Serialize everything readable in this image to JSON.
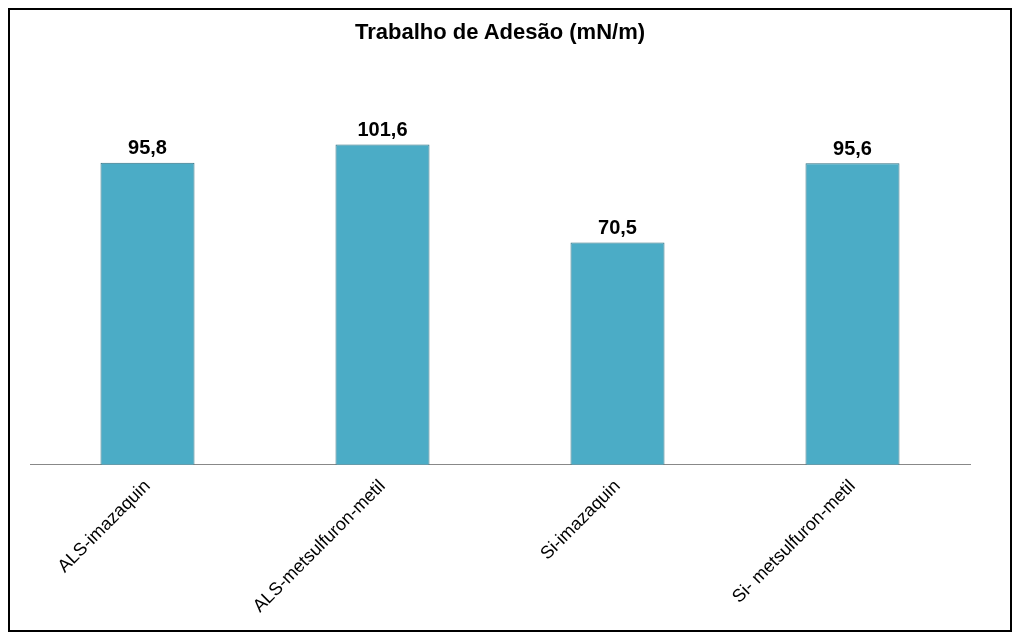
{
  "chart_data": {
    "type": "bar",
    "title": "Trabalho de Adesão (mN/m)",
    "categories": [
      "ALS-imazaquin",
      "ALS-metsulfuron-metil",
      "Si-imazaquin",
      "Si- metsulfuron-metil"
    ],
    "values": [
      95.8,
      101.6,
      70.5,
      95.6
    ],
    "value_labels": [
      "95,8",
      "101,6",
      "70,5",
      "95,6"
    ],
    "color": "#4bacc6",
    "grid": false,
    "legend": false
  }
}
